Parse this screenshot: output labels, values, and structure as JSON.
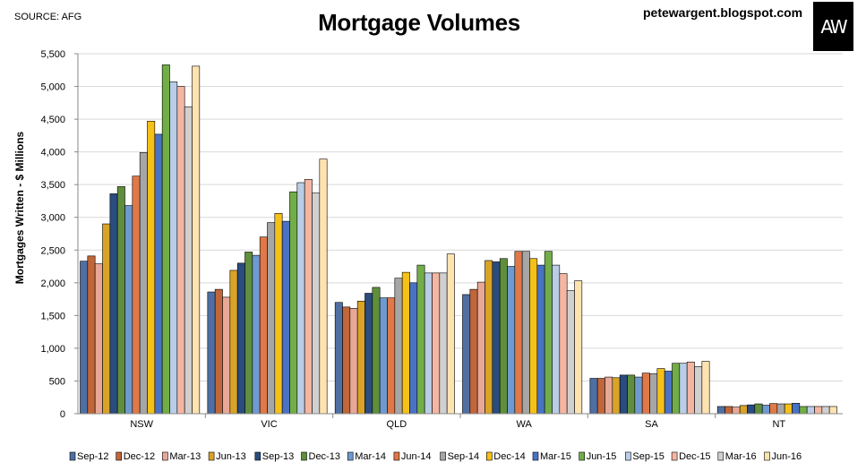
{
  "header": {
    "source": "SOURCE: AFG",
    "title": "Mortgage Volumes",
    "blog": "petewargent.blogspot.com",
    "logo": "AW"
  },
  "chart_data": {
    "type": "bar",
    "title": "Mortgage Volumes",
    "xlabel": "",
    "ylabel": "Mortgages Written - $ Millions",
    "ylim": [
      0,
      5500
    ],
    "yticks": [
      0,
      500,
      1000,
      1500,
      2000,
      2500,
      3000,
      3500,
      4000,
      4500,
      5000,
      5500
    ],
    "ytick_labels": [
      "0",
      "500",
      "1,000",
      "1,500",
      "2,000",
      "2,500",
      "3,000",
      "3,500",
      "4,000",
      "4,500",
      "5,000",
      "5,500"
    ],
    "grid": true,
    "legend_position": "bottom",
    "categories": [
      "NSW",
      "VIC",
      "QLD",
      "WA",
      "SA",
      "NT"
    ],
    "series": [
      {
        "name": "Sep-12",
        "color": "#4f6fa3",
        "values": [
          2330,
          1860,
          1700,
          1820,
          540,
          110
        ]
      },
      {
        "name": "Dec-12",
        "color": "#c0663a",
        "values": [
          2410,
          1900,
          1630,
          1900,
          540,
          110
        ]
      },
      {
        "name": "Mar-13",
        "color": "#e8a897",
        "values": [
          2290,
          1780,
          1610,
          2010,
          560,
          100
        ]
      },
      {
        "name": "Jun-13",
        "color": "#d9a328",
        "values": [
          2900,
          2190,
          1720,
          2340,
          550,
          125
        ]
      },
      {
        "name": "Sep-13",
        "color": "#2a4c7e",
        "values": [
          3360,
          2300,
          1840,
          2320,
          590,
          135
        ]
      },
      {
        "name": "Dec-13",
        "color": "#5f8f3c",
        "values": [
          3470,
          2470,
          1930,
          2370,
          590,
          150
        ]
      },
      {
        "name": "Mar-14",
        "color": "#6f9ad0",
        "values": [
          3180,
          2420,
          1770,
          2250,
          560,
          130
        ]
      },
      {
        "name": "Jun-14",
        "color": "#e07847",
        "values": [
          3630,
          2700,
          1770,
          2480,
          620,
          155
        ]
      },
      {
        "name": "Sep-14",
        "color": "#a6a6a6",
        "values": [
          3990,
          2920,
          2070,
          2480,
          610,
          150
        ]
      },
      {
        "name": "Dec-14",
        "color": "#f5c018",
        "values": [
          4470,
          3060,
          2160,
          2370,
          690,
          150
        ]
      },
      {
        "name": "Mar-15",
        "color": "#4a72c4",
        "values": [
          4270,
          2940,
          2000,
          2270,
          650,
          160
        ]
      },
      {
        "name": "Jun-15",
        "color": "#72ae48",
        "values": [
          5330,
          3390,
          2270,
          2480,
          770,
          110
        ]
      },
      {
        "name": "Sep-15",
        "color": "#b9cde6",
        "values": [
          5070,
          3530,
          2150,
          2270,
          770,
          110
        ]
      },
      {
        "name": "Dec-15",
        "color": "#f4b6a2",
        "values": [
          5000,
          3580,
          2150,
          2140,
          790,
          110
        ]
      },
      {
        "name": "Mar-16",
        "color": "#d0d0d0",
        "values": [
          4690,
          3370,
          2150,
          1880,
          720,
          110
        ]
      },
      {
        "name": "Jun-16",
        "color": "#fde3b0",
        "values": [
          5310,
          3890,
          2440,
          2030,
          800,
          110
        ]
      }
    ]
  }
}
